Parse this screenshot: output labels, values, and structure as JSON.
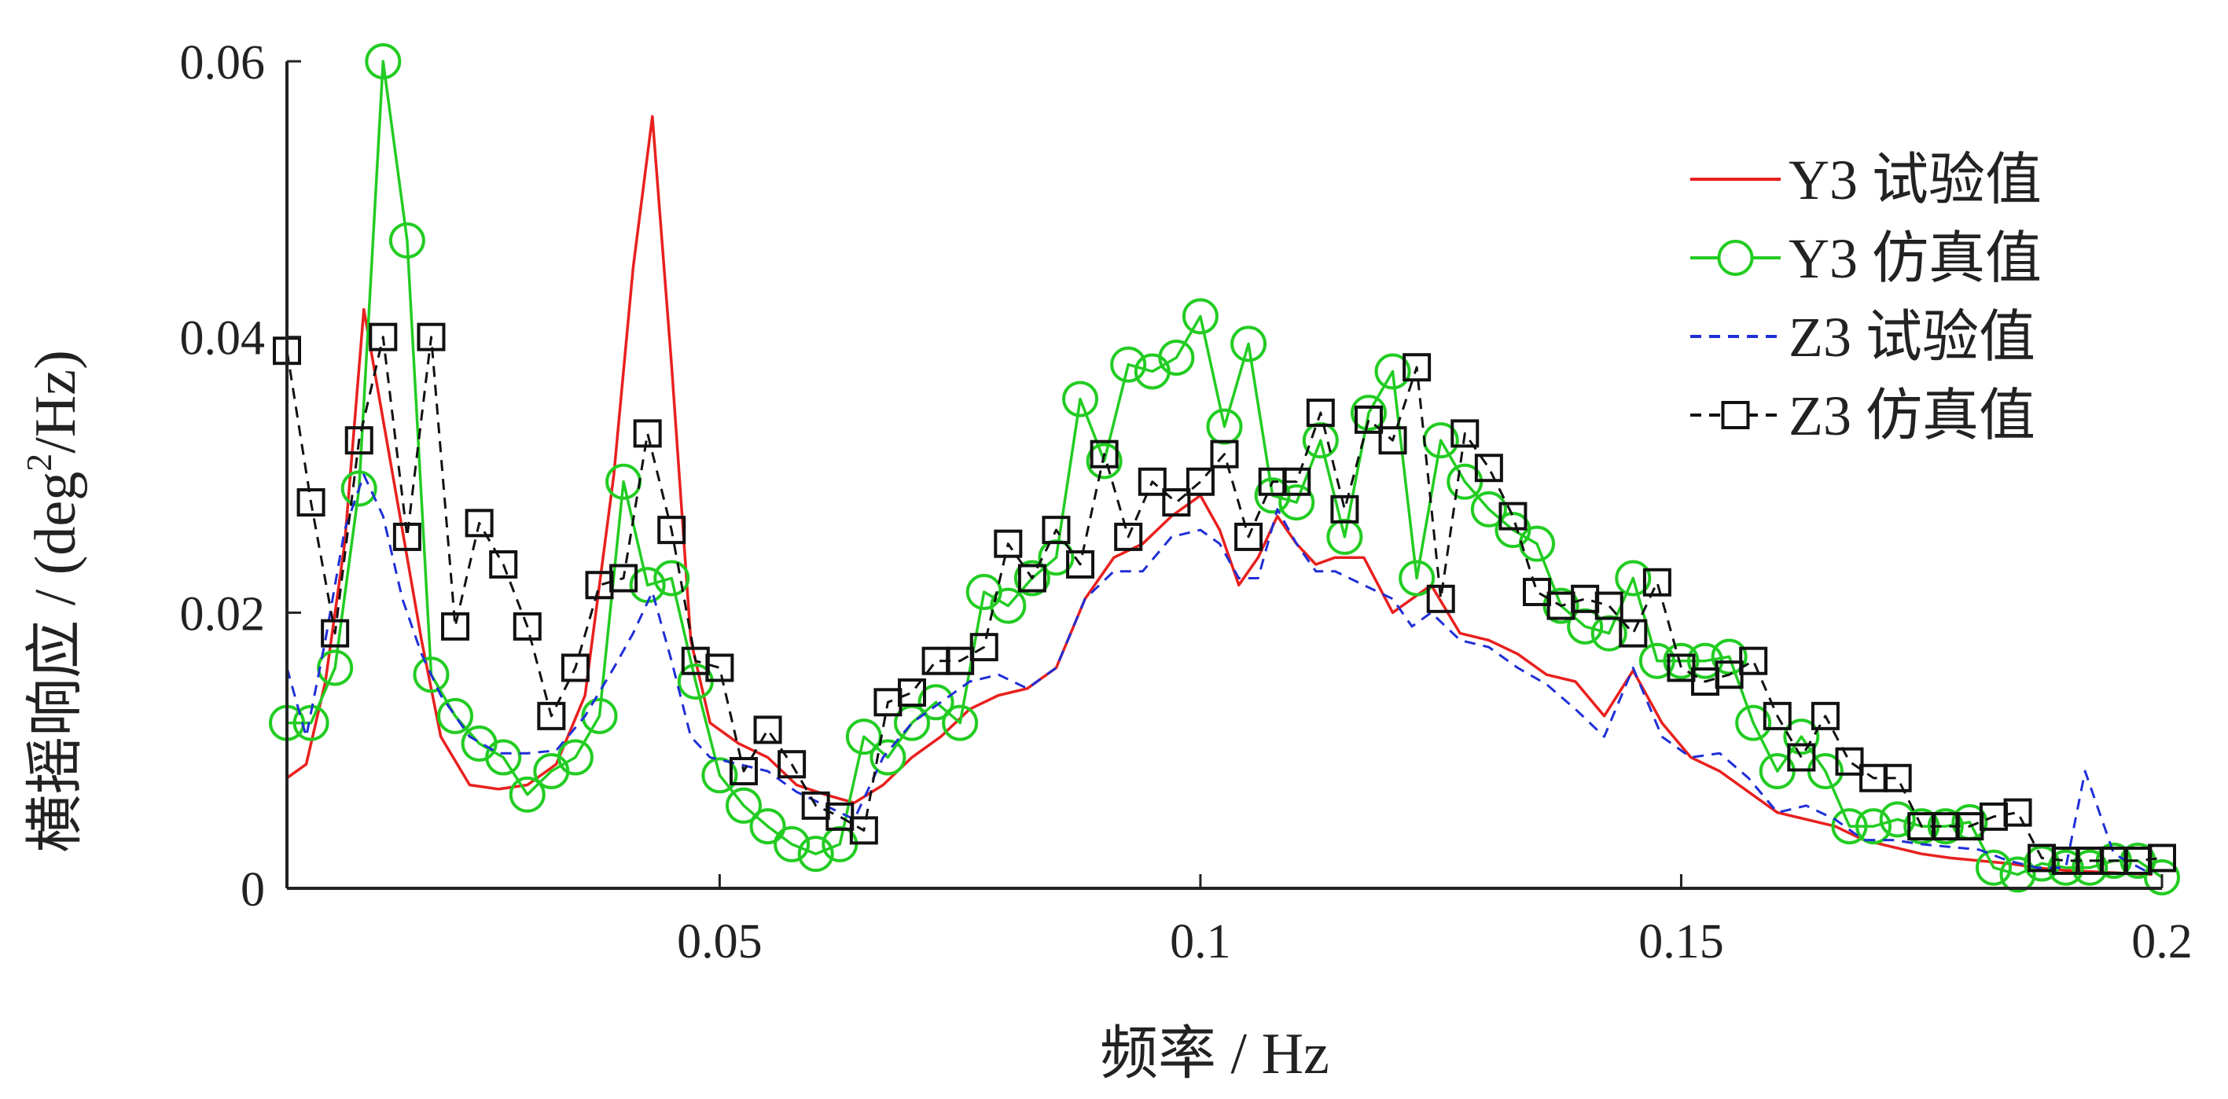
{
  "chart_data": {
    "type": "line",
    "xlabel": "频率 / Hz",
    "ylabel_main": "横摇响应 / (deg",
    "ylabel_sup": "2",
    "ylabel_tail": "/Hz)",
    "xlim": [
      0.005,
      0.2
    ],
    "ylim": [
      0,
      0.06
    ],
    "xticks": [
      0.05,
      0.1,
      0.15,
      0.2
    ],
    "xtick_labels": [
      "0.05",
      "0.1",
      "0.15",
      "0.2"
    ],
    "yticks": [
      0,
      0.02,
      0.04,
      0.06
    ],
    "ytick_labels": [
      "0",
      "0.02",
      "0.04",
      "0.06"
    ],
    "grid": false,
    "legend_position": "top-right",
    "series": [
      {
        "name": "Y3 试验值",
        "color": "#e8201e",
        "style": "solid",
        "marker": "none",
        "x": [
          0.005,
          0.007,
          0.009,
          0.011,
          0.013,
          0.015,
          0.017,
          0.019,
          0.021,
          0.024,
          0.027,
          0.03,
          0.033,
          0.036,
          0.039,
          0.041,
          0.043,
          0.045,
          0.047,
          0.049,
          0.052,
          0.055,
          0.058,
          0.061,
          0.064,
          0.067,
          0.07,
          0.073,
          0.076,
          0.079,
          0.082,
          0.085,
          0.088,
          0.091,
          0.094,
          0.097,
          0.1,
          0.102,
          0.104,
          0.106,
          0.108,
          0.11,
          0.112,
          0.114,
          0.117,
          0.12,
          0.122,
          0.124,
          0.127,
          0.13,
          0.133,
          0.136,
          0.139,
          0.142,
          0.145,
          0.148,
          0.151,
          0.154,
          0.157,
          0.16,
          0.163,
          0.166,
          0.169,
          0.172,
          0.175,
          0.178,
          0.181,
          0.184,
          0.187,
          0.19,
          0.193,
          0.196,
          0.199
        ],
        "y": [
          0.008,
          0.009,
          0.015,
          0.025,
          0.042,
          0.034,
          0.026,
          0.018,
          0.011,
          0.0075,
          0.0072,
          0.0075,
          0.009,
          0.014,
          0.03,
          0.045,
          0.056,
          0.038,
          0.018,
          0.012,
          0.0105,
          0.0095,
          0.0075,
          0.0068,
          0.0062,
          0.0075,
          0.0095,
          0.011,
          0.013,
          0.014,
          0.0145,
          0.016,
          0.021,
          0.024,
          0.025,
          0.027,
          0.0285,
          0.026,
          0.022,
          0.024,
          0.027,
          0.025,
          0.0235,
          0.024,
          0.024,
          0.02,
          0.021,
          0.022,
          0.0185,
          0.018,
          0.017,
          0.0155,
          0.015,
          0.0125,
          0.0158,
          0.012,
          0.0095,
          0.0085,
          0.007,
          0.0055,
          0.005,
          0.0045,
          0.0035,
          0.003,
          0.0025,
          0.0022,
          0.002,
          0.0018,
          0.0015,
          0.0013,
          0.0012,
          0.0011,
          0.001
        ]
      },
      {
        "name": "Y3 仿真值",
        "color": "#22cc22",
        "style": "solid",
        "marker": "circle",
        "x": [
          0.005,
          0.0075,
          0.01,
          0.0125,
          0.015,
          0.0175,
          0.02,
          0.0225,
          0.025,
          0.0275,
          0.03,
          0.0325,
          0.035,
          0.0375,
          0.04,
          0.0425,
          0.045,
          0.0475,
          0.05,
          0.0525,
          0.055,
          0.0575,
          0.06,
          0.0625,
          0.065,
          0.0675,
          0.07,
          0.0725,
          0.075,
          0.0775,
          0.08,
          0.0825,
          0.085,
          0.0875,
          0.09,
          0.0925,
          0.095,
          0.0975,
          0.1,
          0.1025,
          0.105,
          0.1075,
          0.11,
          0.1125,
          0.115,
          0.1175,
          0.12,
          0.1225,
          0.125,
          0.1275,
          0.13,
          0.1325,
          0.135,
          0.1375,
          0.14,
          0.1425,
          0.145,
          0.1475,
          0.15,
          0.1525,
          0.155,
          0.1575,
          0.16,
          0.1625,
          0.165,
          0.1675,
          0.17,
          0.1725,
          0.175,
          0.1775,
          0.18,
          0.1825,
          0.185,
          0.1875,
          0.19,
          0.1925,
          0.195,
          0.1975,
          0.2
        ],
        "y": [
          0.012,
          0.012,
          0.016,
          0.029,
          0.06,
          0.047,
          0.0155,
          0.0125,
          0.0105,
          0.0095,
          0.0068,
          0.0085,
          0.0095,
          0.0125,
          0.0295,
          0.022,
          0.0225,
          0.015,
          0.0082,
          0.006,
          0.0045,
          0.0032,
          0.0025,
          0.0032,
          0.011,
          0.0095,
          0.012,
          0.0135,
          0.012,
          0.0215,
          0.0205,
          0.0225,
          0.024,
          0.0355,
          0.031,
          0.038,
          0.0375,
          0.0385,
          0.0415,
          0.0335,
          0.0395,
          0.0285,
          0.028,
          0.0325,
          0.0255,
          0.0345,
          0.0375,
          0.0225,
          0.0325,
          0.0295,
          0.0275,
          0.026,
          0.025,
          0.0205,
          0.019,
          0.0185,
          0.0225,
          0.0165,
          0.0165,
          0.0165,
          0.0168,
          0.012,
          0.0085,
          0.011,
          0.0085,
          0.0045,
          0.0045,
          0.005,
          0.0045,
          0.0045,
          0.0048,
          0.0015,
          0.001,
          0.0018,
          0.0015,
          0.0015,
          0.002,
          0.002,
          0.0008
        ]
      },
      {
        "name": "Z3 试验值",
        "color": "#1f2fd6",
        "style": "dashed",
        "marker": "none",
        "x": [
          0.005,
          0.007,
          0.009,
          0.011,
          0.013,
          0.015,
          0.017,
          0.019,
          0.021,
          0.024,
          0.027,
          0.03,
          0.033,
          0.036,
          0.039,
          0.041,
          0.043,
          0.045,
          0.047,
          0.049,
          0.052,
          0.055,
          0.058,
          0.061,
          0.064,
          0.067,
          0.07,
          0.073,
          0.076,
          0.079,
          0.082,
          0.085,
          0.088,
          0.091,
          0.094,
          0.097,
          0.1,
          0.102,
          0.104,
          0.106,
          0.108,
          0.11,
          0.112,
          0.114,
          0.117,
          0.12,
          0.122,
          0.124,
          0.127,
          0.13,
          0.133,
          0.136,
          0.139,
          0.142,
          0.145,
          0.148,
          0.151,
          0.154,
          0.157,
          0.16,
          0.163,
          0.166,
          0.169,
          0.172,
          0.175,
          0.178,
          0.181,
          0.184,
          0.187,
          0.19,
          0.192,
          0.195,
          0.199
        ],
        "y": [
          0.016,
          0.011,
          0.018,
          0.026,
          0.03,
          0.027,
          0.021,
          0.017,
          0.014,
          0.011,
          0.0098,
          0.0098,
          0.01,
          0.0125,
          0.016,
          0.0185,
          0.0215,
          0.0165,
          0.011,
          0.0095,
          0.009,
          0.0085,
          0.007,
          0.006,
          0.005,
          0.0095,
          0.012,
          0.0135,
          0.015,
          0.0155,
          0.0145,
          0.016,
          0.021,
          0.023,
          0.023,
          0.0255,
          0.026,
          0.025,
          0.0225,
          0.0225,
          0.0275,
          0.025,
          0.023,
          0.023,
          0.022,
          0.021,
          0.019,
          0.02,
          0.018,
          0.0175,
          0.016,
          0.0148,
          0.013,
          0.011,
          0.016,
          0.011,
          0.0095,
          0.0098,
          0.008,
          0.0055,
          0.006,
          0.005,
          0.0035,
          0.0035,
          0.0032,
          0.003,
          0.0028,
          0.002,
          0.0015,
          0.0015,
          0.0085,
          0.0025,
          0.001
        ]
      },
      {
        "name": "Z3 仿真值",
        "color": "#111111",
        "style": "dashed",
        "marker": "square",
        "x": [
          0.005,
          0.0075,
          0.01,
          0.0125,
          0.015,
          0.0175,
          0.02,
          0.0225,
          0.025,
          0.0275,
          0.03,
          0.0325,
          0.035,
          0.0375,
          0.04,
          0.0425,
          0.045,
          0.0475,
          0.05,
          0.0525,
          0.055,
          0.0575,
          0.06,
          0.0625,
          0.065,
          0.0675,
          0.07,
          0.0725,
          0.075,
          0.0775,
          0.08,
          0.0825,
          0.085,
          0.0875,
          0.09,
          0.0925,
          0.095,
          0.0975,
          0.1,
          0.1025,
          0.105,
          0.1075,
          0.11,
          0.1125,
          0.115,
          0.1175,
          0.12,
          0.1225,
          0.125,
          0.1275,
          0.13,
          0.1325,
          0.135,
          0.1375,
          0.14,
          0.1425,
          0.145,
          0.1475,
          0.15,
          0.1525,
          0.155,
          0.1575,
          0.16,
          0.1625,
          0.165,
          0.1675,
          0.17,
          0.1725,
          0.175,
          0.1775,
          0.18,
          0.1825,
          0.185,
          0.1875,
          0.19,
          0.1925,
          0.195,
          0.1975,
          0.2
        ],
        "y": [
          0.039,
          0.028,
          0.0185,
          0.0325,
          0.04,
          0.0255,
          0.04,
          0.019,
          0.0265,
          0.0235,
          0.019,
          0.0125,
          0.016,
          0.022,
          0.0225,
          0.033,
          0.026,
          0.0165,
          0.016,
          0.0085,
          0.0115,
          0.009,
          0.006,
          0.0052,
          0.0042,
          0.0135,
          0.0142,
          0.0165,
          0.0165,
          0.0175,
          0.025,
          0.0225,
          0.026,
          0.0235,
          0.0315,
          0.0255,
          0.0295,
          0.028,
          0.0295,
          0.0315,
          0.0255,
          0.0295,
          0.0295,
          0.0345,
          0.0275,
          0.034,
          0.0325,
          0.0378,
          0.021,
          0.033,
          0.0305,
          0.027,
          0.0215,
          0.0205,
          0.021,
          0.0205,
          0.0185,
          0.0222,
          0.016,
          0.015,
          0.0155,
          0.0165,
          0.0125,
          0.0095,
          0.0125,
          0.0092,
          0.008,
          0.008,
          0.0045,
          0.0045,
          0.0045,
          0.0052,
          0.0055,
          0.0022,
          0.002,
          0.002,
          0.002,
          0.002,
          0.0022
        ]
      }
    ]
  }
}
